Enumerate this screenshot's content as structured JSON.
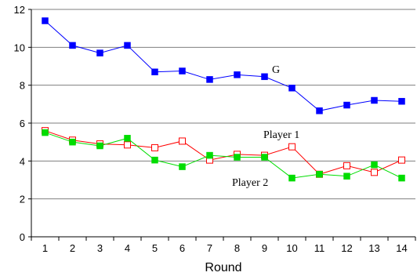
{
  "chart_data": {
    "type": "line",
    "xlabel": "Round",
    "ylabel": "",
    "x": [
      1,
      2,
      3,
      4,
      5,
      6,
      7,
      8,
      9,
      10,
      11,
      12,
      13,
      14
    ],
    "ylim": [
      0,
      12
    ],
    "yticks": [
      0,
      2,
      4,
      6,
      8,
      10,
      12
    ],
    "grid": "horizontal",
    "series": [
      {
        "name": "G",
        "color": "#0000ff",
        "marker": "filled-square",
        "values": [
          11.4,
          10.1,
          9.7,
          10.1,
          8.7,
          8.75,
          8.3,
          8.55,
          8.45,
          7.85,
          6.65,
          6.95,
          7.2,
          7.15
        ]
      },
      {
        "name": "Player 1",
        "color": "#ff0000",
        "marker": "open-square",
        "values": [
          5.6,
          5.1,
          4.9,
          4.85,
          4.7,
          5.05,
          4.05,
          4.35,
          4.3,
          4.75,
          3.3,
          3.75,
          3.4,
          4.05
        ]
      },
      {
        "name": "Player 2",
        "color": "#00dd00",
        "marker": "filled-square",
        "values": [
          5.5,
          5.0,
          4.8,
          5.2,
          4.05,
          3.7,
          4.3,
          4.2,
          4.2,
          3.1,
          3.3,
          3.2,
          3.8,
          3.1
        ]
      }
    ],
    "annotations": [
      "G",
      "Player 1",
      "Player 2"
    ]
  }
}
